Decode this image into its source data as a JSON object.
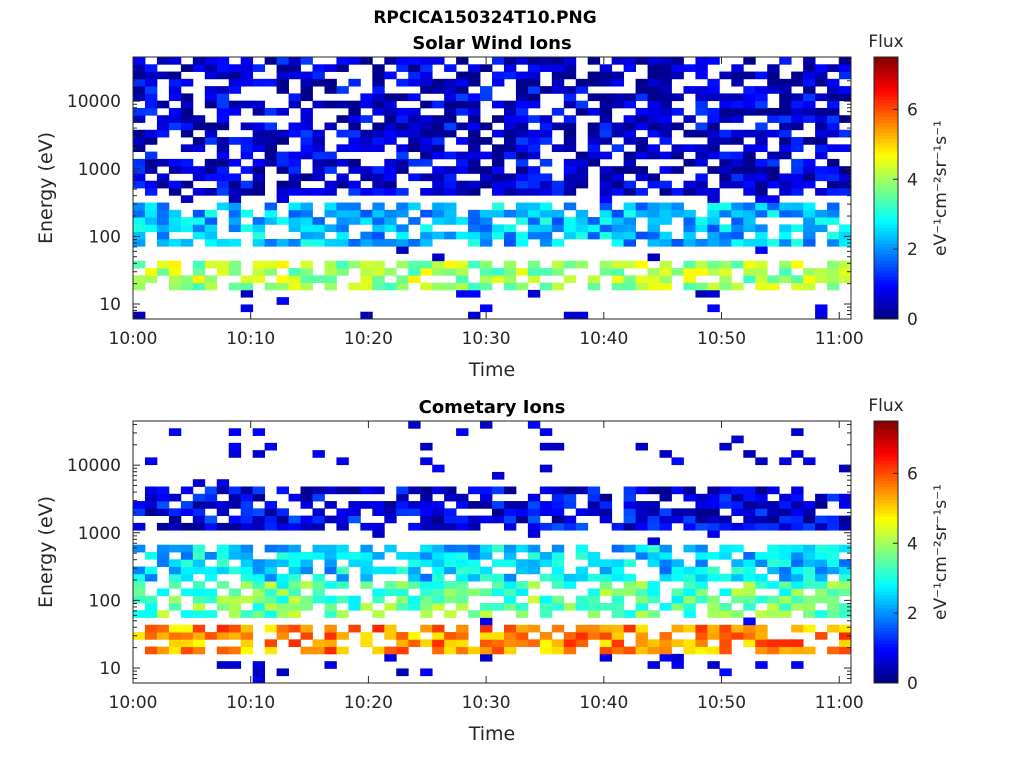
{
  "figure": {
    "title": "RPCICA150324T10.PNG"
  },
  "chart_data": [
    {
      "type": "heatmap",
      "title": "Solar Wind Ions",
      "xlabel": "Time",
      "ylabel": "Energy (eV)",
      "yscale": "log",
      "xlim": [
        "10:00",
        "11:01"
      ],
      "ylim": [
        6,
        45000
      ],
      "x_ticks": [
        "10:00",
        "10:10",
        "10:20",
        "10:30",
        "10:40",
        "10:50",
        "11:00"
      ],
      "y_ticks": [
        "10",
        "100",
        "1000",
        "10000"
      ],
      "colorbar": {
        "title": "Flux",
        "label": "eV⁻¹cm⁻²sr⁻¹s⁻¹",
        "ticks": [
          "0",
          "2",
          "4",
          "6"
        ],
        "range": [
          0,
          7.5
        ],
        "colormap": "jet"
      },
      "dominant_bands": [
        {
          "energy_range_eV": [
            70,
            350
          ],
          "flux_level": 2.3
        },
        {
          "energy_range_eV": [
            15,
            40
          ],
          "flux_level": 4.0
        },
        {
          "energy_range_eV": [
            400,
            40000
          ],
          "flux_level": 0.6
        }
      ]
    },
    {
      "type": "heatmap",
      "title": "Cometary Ions",
      "xlabel": "Time",
      "ylabel": "Energy (eV)",
      "yscale": "log",
      "xlim": [
        "10:00",
        "11:01"
      ],
      "ylim": [
        6,
        45000
      ],
      "x_ticks": [
        "10:00",
        "10:10",
        "10:20",
        "10:30",
        "10:40",
        "10:50",
        "11:00"
      ],
      "y_ticks": [
        "10",
        "100",
        "1000",
        "10000"
      ],
      "colorbar": {
        "title": "Flux",
        "label": "eV⁻¹cm⁻²sr⁻¹s⁻¹",
        "ticks": [
          "0",
          "2",
          "4",
          "6"
        ],
        "range": [
          0,
          7.5
        ],
        "colormap": "jet"
      },
      "dominant_bands": [
        {
          "energy_range_eV": [
            15,
            40
          ],
          "flux_level": 5.5
        },
        {
          "energy_range_eV": [
            50,
            200
          ],
          "flux_level": 3.5
        },
        {
          "energy_range_eV": [
            200,
            600
          ],
          "flux_level": 2.5
        },
        {
          "energy_range_eV": [
            1000,
            5000
          ],
          "flux_level": 0.8
        }
      ]
    }
  ]
}
